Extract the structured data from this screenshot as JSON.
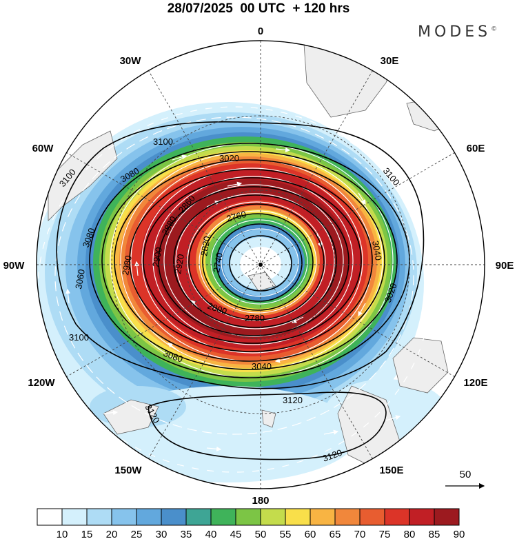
{
  "title": "28/07/2025  00 UTC  + 120 hrs",
  "brand": "MODES",
  "brand_mark": "©",
  "meridian_labels": {
    "m0": "0",
    "m30e": "30E",
    "m60e": "60E",
    "m90e": "90E",
    "m120e": "120E",
    "m150e": "150E",
    "m180": "180",
    "m150w": "150W",
    "m120w": "120W",
    "m90w": "90W",
    "m60w": "60W",
    "m30w": "30W"
  },
  "contours": [
    "3100",
    "3100",
    "3100",
    "3100",
    "3080",
    "3080",
    "3080",
    "3060",
    "3020",
    "3040",
    "3020",
    "2980",
    "2900",
    "2920",
    "2880",
    "2860",
    "2820",
    "2760",
    "2740",
    "2800",
    "2780",
    "3040",
    "3120",
    "3120",
    "3120"
  ],
  "reference_vector": "50",
  "colorbar": {
    "labels": [
      "10",
      "15",
      "20",
      "25",
      "30",
      "35",
      "40",
      "45",
      "50",
      "55",
      "60",
      "65",
      "70",
      "75",
      "80",
      "85",
      "90"
    ],
    "colors": [
      "#ffffff",
      "#d4f0fc",
      "#aedcf5",
      "#86c3ec",
      "#62a8dd",
      "#4a8fcb",
      "#3ea595",
      "#3fb35a",
      "#7cc545",
      "#c4dc4c",
      "#f9df4a",
      "#f8b443",
      "#f1873b",
      "#e85d30",
      "#dc3428",
      "#c11f25",
      "#9c1a1f"
    ]
  }
}
